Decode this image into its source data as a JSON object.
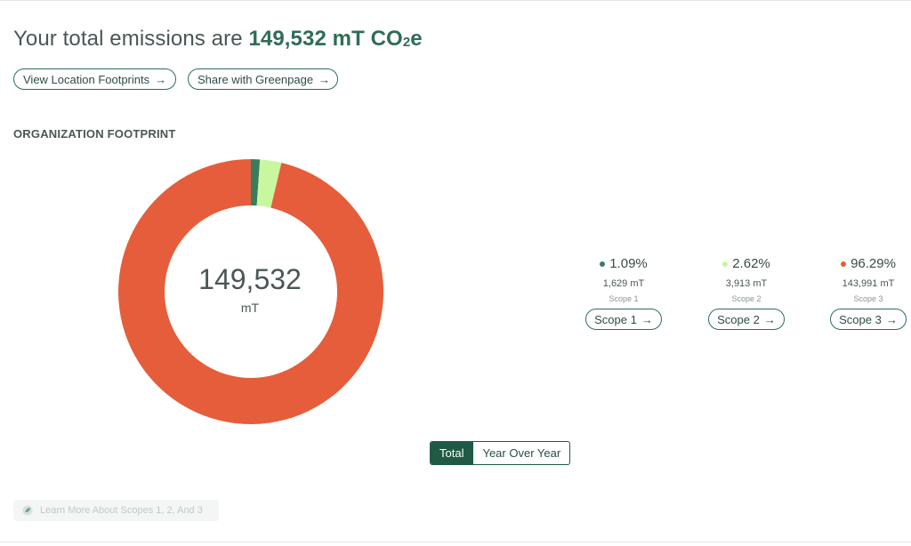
{
  "header": {
    "headline_prefix": "Your total emissions are",
    "headline_amount": "149,532 mT CO",
    "headline_subscript": "2",
    "headline_suffix": "e"
  },
  "actions": {
    "locations_label": "View Location Footprints",
    "greenpage_label": "Share with Greenpage",
    "arrow": "→"
  },
  "section": {
    "title": "ORGANIZATION FOOTPRINT"
  },
  "chart_data": {
    "type": "pie",
    "categories": [
      "Scope 1",
      "Scope 2",
      "Scope 3"
    ],
    "values": [
      1629,
      3913,
      143991
    ],
    "percents": [
      1.09,
      2.62,
      96.29
    ],
    "colors": [
      "#3a7c5e",
      "#c8f7a0",
      "#e55d3a"
    ],
    "center_total": "149,532",
    "center_unit": "mT"
  },
  "scopes": [
    {
      "pct": "1.09%",
      "amount": "1,629 mT",
      "label": "Scope 1",
      "button": "Scope 1",
      "color": "#3a7c5e"
    },
    {
      "pct": "2.62%",
      "amount": "3,913 mT",
      "label": "Scope 2",
      "button": "Scope 2",
      "color": "#c8f7a0"
    },
    {
      "pct": "96.29%",
      "amount": "143,991 mT",
      "label": "Scope 3",
      "button": "Scope 3",
      "color": "#e55d3a"
    }
  ],
  "toggle": {
    "total": "Total",
    "yoy": "Year Over Year"
  },
  "learn": {
    "label": "Learn More About Scopes 1, 2, And 3",
    "icon": "leaf-icon"
  }
}
